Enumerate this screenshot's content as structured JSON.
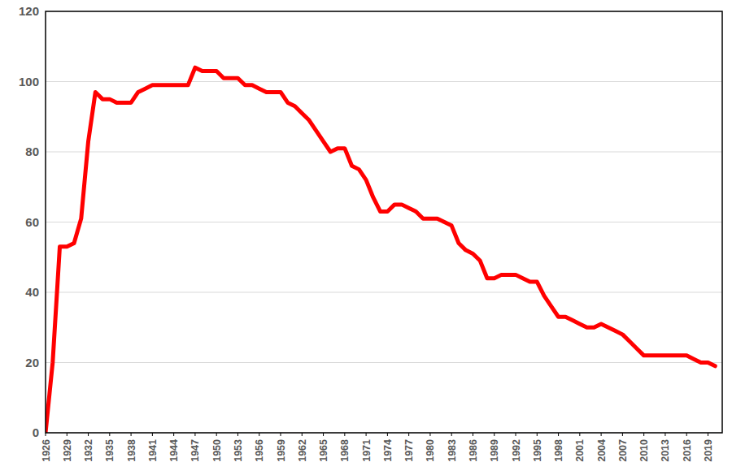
{
  "chart_data": {
    "type": "line",
    "x": [
      1926,
      1927,
      1928,
      1929,
      1930,
      1931,
      1932,
      1933,
      1934,
      1935,
      1936,
      1937,
      1938,
      1939,
      1940,
      1941,
      1942,
      1943,
      1944,
      1945,
      1946,
      1947,
      1948,
      1949,
      1950,
      1951,
      1952,
      1953,
      1954,
      1955,
      1956,
      1957,
      1958,
      1959,
      1960,
      1961,
      1962,
      1963,
      1964,
      1965,
      1966,
      1967,
      1968,
      1969,
      1970,
      1971,
      1972,
      1973,
      1974,
      1975,
      1976,
      1977,
      1978,
      1979,
      1980,
      1981,
      1982,
      1983,
      1984,
      1985,
      1986,
      1987,
      1988,
      1989,
      1990,
      1991,
      1992,
      1993,
      1994,
      1995,
      1996,
      1997,
      1998,
      1999,
      2000,
      2001,
      2002,
      2003,
      2004,
      2005,
      2006,
      2007,
      2008,
      2009,
      2010,
      2011,
      2012,
      2013,
      2014,
      2015,
      2016,
      2017,
      2018,
      2019,
      2020
    ],
    "values": [
      0,
      20,
      53,
      53,
      54,
      61,
      83,
      97,
      95,
      95,
      94,
      94,
      94,
      97,
      98,
      99,
      99,
      99,
      99,
      99,
      99,
      104,
      103,
      103,
      103,
      101,
      101,
      101,
      99,
      99,
      98,
      97,
      97,
      97,
      94,
      93,
      91,
      89,
      86,
      83,
      80,
      81,
      81,
      76,
      75,
      72,
      67,
      63,
      63,
      65,
      65,
      64,
      63,
      61,
      61,
      61,
      60,
      59,
      54,
      52,
      51,
      49,
      44,
      44,
      45,
      45,
      45,
      44,
      43,
      43,
      39,
      36,
      33,
      33,
      32,
      31,
      30,
      30,
      31,
      30,
      29,
      28,
      26,
      24,
      22,
      22,
      22,
      22,
      22,
      22,
      22,
      21,
      20,
      20,
      19
    ],
    "color": "#ff0000",
    "xlim": [
      1926,
      2021
    ],
    "xticks": [
      1926,
      1929,
      1932,
      1935,
      1938,
      1941,
      1944,
      1947,
      1950,
      1953,
      1956,
      1959,
      1962,
      1965,
      1968,
      1971,
      1974,
      1977,
      1980,
      1983,
      1986,
      1989,
      1992,
      1995,
      1998,
      2001,
      2004,
      2007,
      2010,
      2013,
      2016,
      2019
    ],
    "ylim": [
      0,
      120
    ],
    "yticks": [
      0,
      20,
      40,
      60,
      80,
      100,
      120
    ],
    "grid": true
  }
}
